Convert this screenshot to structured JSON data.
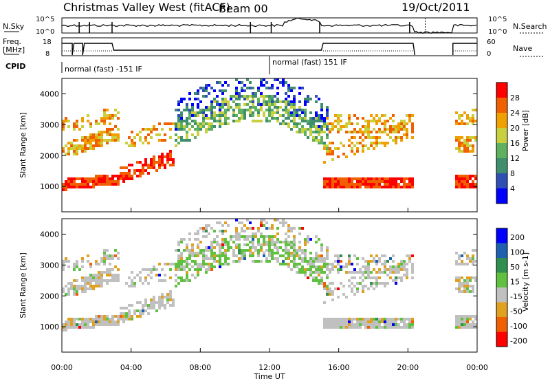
{
  "header": {
    "title": "Christmas Valley West (fitACF)",
    "beam": "Beam 00",
    "date": "19/Oct/2011"
  },
  "strip1": {
    "left_label": "N.Sky",
    "right_label": "N.Search",
    "left_ticks": [
      "10^5",
      "10^0"
    ],
    "right_ticks": [
      "10^5",
      "10^0"
    ]
  },
  "strip2": {
    "left_label_1": "Freq.",
    "left_label_2": "[MHz]",
    "right_label": "Nave",
    "left_ticks": [
      "18",
      "8"
    ],
    "right_ticks": [
      "60",
      "0"
    ]
  },
  "cpid": {
    "label": "CPID",
    "mode1": "normal (fast) -151 IF",
    "mode2": "normal (fast) 151 IF"
  },
  "colors": {
    "power": [
      "#0000ff",
      "#2f4fb4",
      "#3f8f6f",
      "#5fb05f",
      "#c8d040",
      "#f0a000",
      "#f06000",
      "#ff0000"
    ],
    "velocity": [
      "#0000ff",
      "#1f5faf",
      "#2f8f4f",
      "#60c040",
      "#c0c0c0",
      "#e0a020",
      "#f06000",
      "#ff0000"
    ]
  },
  "chart_data": [
    {
      "type": "heatmap",
      "ylabel": "Slant Range [km]",
      "ylim": [
        180,
        4500
      ],
      "yticks": [
        1000,
        2000,
        3000,
        4000
      ],
      "colorbar_label": "Power [dB]",
      "colorbar_ticks": [
        "4",
        "8",
        "12",
        "16",
        "20",
        "24",
        "28"
      ]
    },
    {
      "type": "heatmap",
      "ylabel": "Slant Range [km]",
      "xlabel": "Time UT",
      "ylim": [
        180,
        4500
      ],
      "yticks": [
        1000,
        2000,
        3000,
        4000
      ],
      "xticks": [
        "00:00",
        "04:00",
        "08:00",
        "12:00",
        "16:00",
        "20:00",
        "00:00"
      ],
      "colorbar_label": "Velocity [m s-1]",
      "colorbar_ticks": [
        "200",
        "100",
        "50",
        "15",
        "-15",
        "-50",
        "-100",
        "-200"
      ]
    }
  ]
}
